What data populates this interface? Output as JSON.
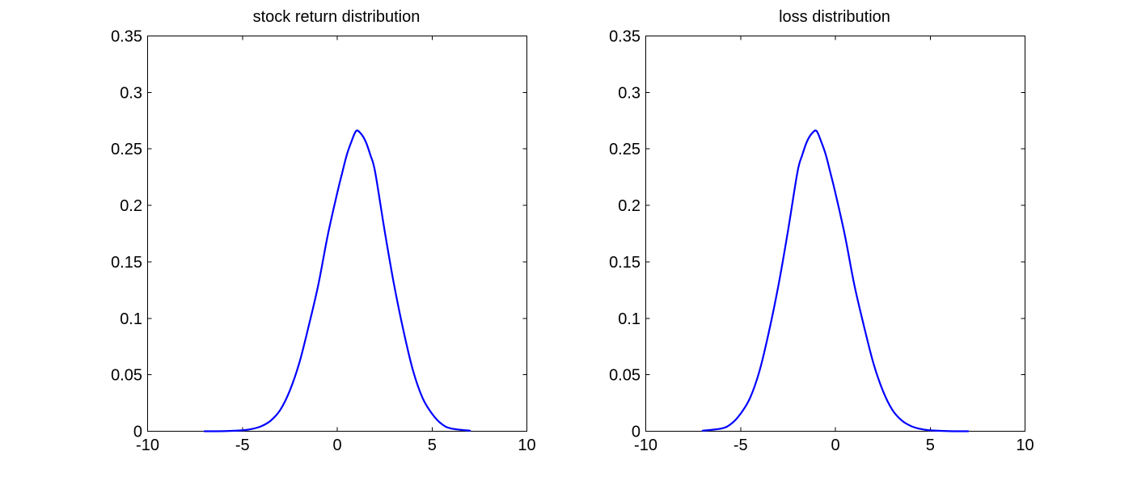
{
  "chart_data": [
    {
      "type": "line",
      "title": "stock return distribution",
      "xlabel": "",
      "ylabel": "",
      "xlim": [
        -10,
        10
      ],
      "ylim": [
        0,
        0.35
      ],
      "xticks": [
        -10,
        -5,
        0,
        5,
        10
      ],
      "xtick_labels": [
        "-10",
        "-5",
        "0",
        "5",
        "10"
      ],
      "yticks": [
        0,
        0.05,
        0.1,
        0.15,
        0.2,
        0.25,
        0.3,
        0.35
      ],
      "ytick_labels": [
        "0",
        "0.05",
        "0.1",
        "0.15",
        "0.2",
        "0.25",
        "0.3",
        "0.35"
      ],
      "grid": false,
      "legend": "none",
      "series": [
        {
          "color": "#0000ff",
          "x": [
            -7,
            -6,
            -5,
            -4.5,
            -4,
            -3.5,
            -3,
            -2.5,
            -2,
            -1.5,
            -1,
            -0.5,
            0,
            0.25,
            0.5,
            0.75,
            1,
            1.25,
            1.5,
            1.75,
            2,
            2.5,
            3,
            3.5,
            4,
            4.5,
            5,
            5.5,
            6,
            7
          ],
          "y": [
            0.0,
            0.0001,
            0.0008,
            0.002,
            0.0045,
            0.0095,
            0.019,
            0.036,
            0.0605,
            0.0935,
            0.1295,
            0.1735,
            0.211,
            0.228,
            0.2445,
            0.2565,
            0.266,
            0.2635,
            0.2565,
            0.2445,
            0.2295,
            0.1775,
            0.1295,
            0.0885,
            0.0535,
            0.0295,
            0.0155,
            0.0065,
            0.0025,
            0.0005
          ]
        }
      ]
    },
    {
      "type": "line",
      "title": "loss distribution",
      "xlabel": "",
      "ylabel": "",
      "xlim": [
        -10,
        10
      ],
      "ylim": [
        0,
        0.35
      ],
      "xticks": [
        -10,
        -5,
        0,
        5,
        10
      ],
      "xtick_labels": [
        "-10",
        "-5",
        "0",
        "5",
        "10"
      ],
      "yticks": [
        0,
        0.05,
        0.1,
        0.15,
        0.2,
        0.25,
        0.3,
        0.35
      ],
      "ytick_labels": [
        "0",
        "0.05",
        "0.1",
        "0.15",
        "0.2",
        "0.25",
        "0.3",
        "0.35"
      ],
      "grid": false,
      "legend": "none",
      "series": [
        {
          "color": "#0000ff",
          "x": [
            -7,
            -6,
            -5.5,
            -5,
            -4.5,
            -4,
            -3.5,
            -3,
            -2.5,
            -2,
            -1.75,
            -1.5,
            -1.25,
            -1,
            -0.75,
            -0.5,
            -0.25,
            0,
            0.5,
            1,
            1.5,
            2,
            2.5,
            3,
            3.5,
            4,
            4.5,
            5,
            6,
            7
          ],
          "y": [
            0.0005,
            0.0025,
            0.0065,
            0.0155,
            0.0295,
            0.0535,
            0.0885,
            0.1295,
            0.1775,
            0.2295,
            0.2445,
            0.2565,
            0.2635,
            0.266,
            0.2565,
            0.2445,
            0.228,
            0.211,
            0.1735,
            0.1295,
            0.0935,
            0.0605,
            0.036,
            0.019,
            0.0095,
            0.0045,
            0.002,
            0.0008,
            0.0001,
            0.0
          ]
        }
      ]
    }
  ]
}
